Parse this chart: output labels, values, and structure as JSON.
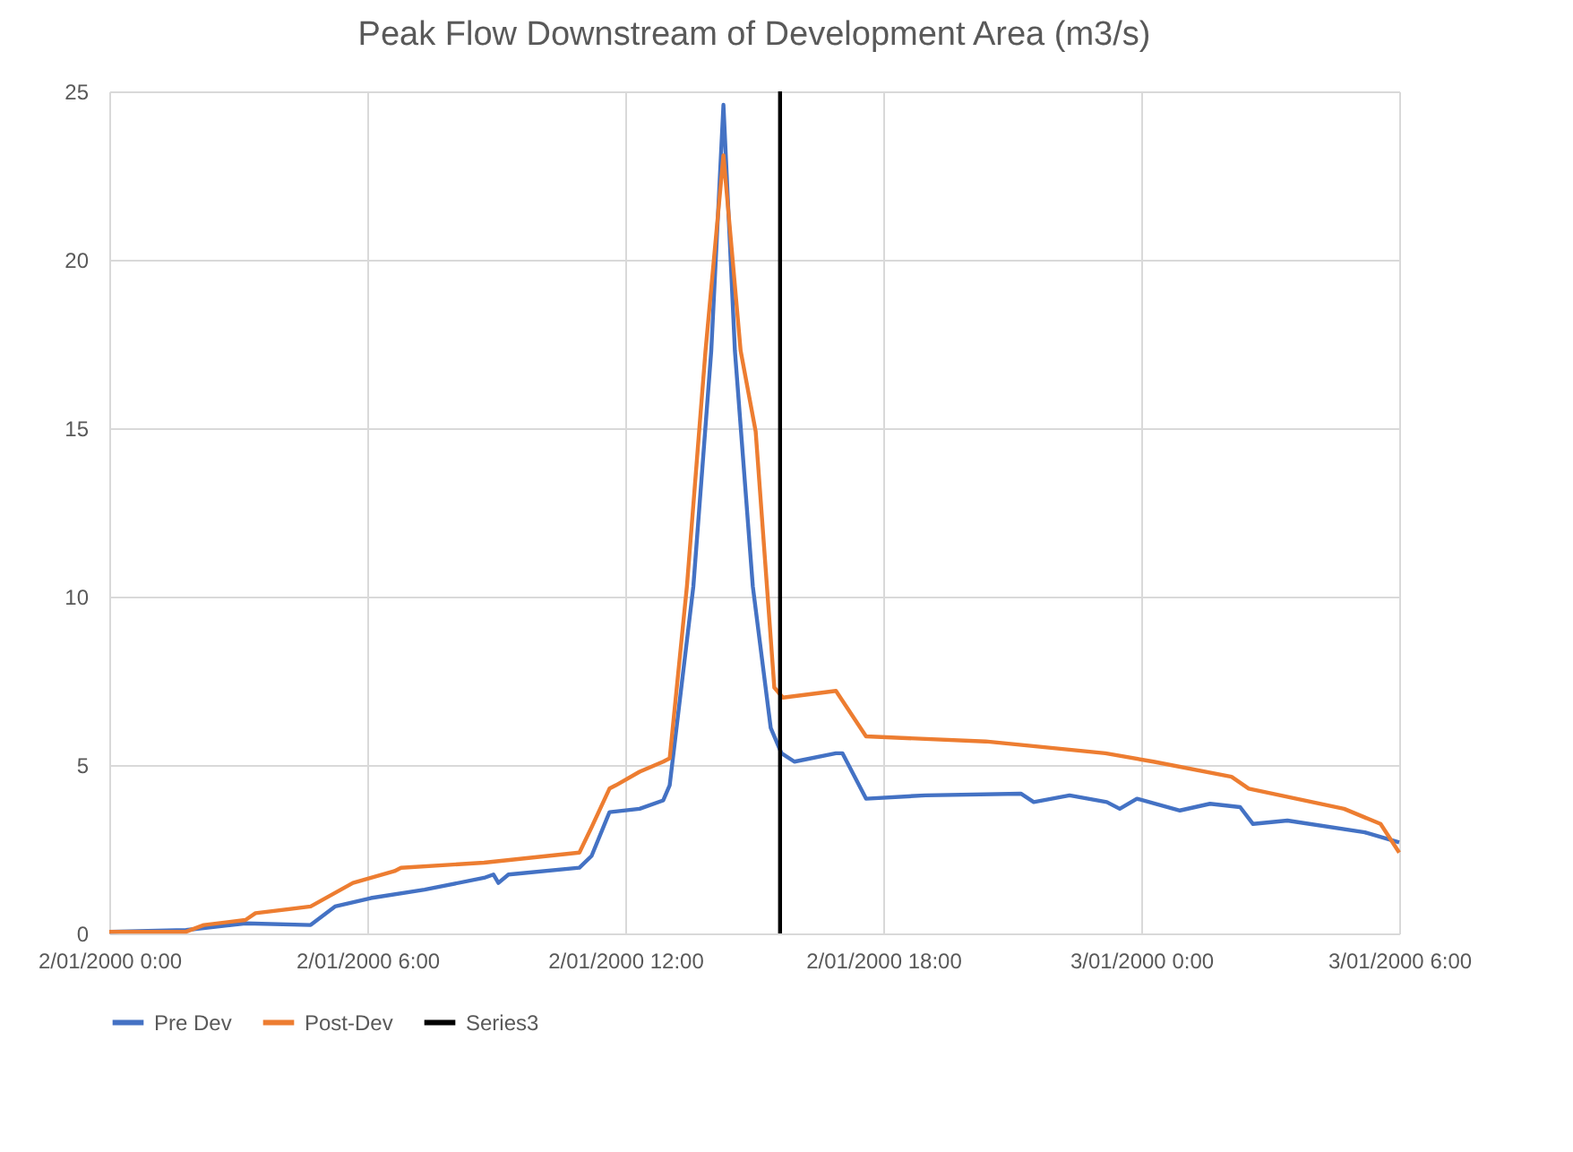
{
  "chart_data": {
    "type": "line",
    "title": "Peak Flow Downstream of Development Area (m3/s)",
    "xlim": [
      "2000-01-02T00:00",
      "2000-01-03T06:00"
    ],
    "xticks": [
      {
        "value": "2000-01-02T00:00",
        "label": "2/01/2000 0:00"
      },
      {
        "value": "2000-01-02T06:00",
        "label": "2/01/2000 6:00"
      },
      {
        "value": "2000-01-02T12:00",
        "label": "2/01/2000 12:00"
      },
      {
        "value": "2000-01-02T18:00",
        "label": "2/01/2000 18:00"
      },
      {
        "value": "2000-01-03T00:00",
        "label": "3/01/2000 0:00"
      },
      {
        "value": "2000-01-03T06:00",
        "label": "3/01/2000 6:00"
      }
    ],
    "ylim": [
      0,
      25
    ],
    "yticks": [
      0,
      5,
      10,
      15,
      20,
      25
    ],
    "grid": true,
    "legend": "bottom",
    "line_style": "solid",
    "marker": "none",
    "series": [
      {
        "name": "Pre Dev",
        "color": "#4472c4",
        "x": [
          "2000-01-02T00:00",
          "2000-01-02T01:47",
          "2000-01-02T03:10",
          "2000-01-02T04:41",
          "2000-01-02T05:15",
          "2000-01-02T06:05",
          "2000-01-02T07:20",
          "2000-01-02T08:43",
          "2000-01-02T08:56",
          "2000-01-02T09:03",
          "2000-01-02T09:17",
          "2000-01-02T10:56",
          "2000-01-02T11:13",
          "2000-01-02T11:38",
          "2000-01-02T12:20",
          "2000-01-02T12:53",
          "2000-01-02T13:02",
          "2000-01-02T13:35",
          "2000-01-02T14:00",
          "2000-01-02T14:17",
          "2000-01-02T14:33",
          "2000-01-02T14:58",
          "2000-01-02T15:23",
          "2000-01-02T15:38",
          "2000-01-02T15:56",
          "2000-01-02T16:54",
          "2000-01-02T17:03",
          "2000-01-02T17:36",
          "2000-01-02T18:59",
          "2000-01-02T21:12",
          "2000-01-02T21:30",
          "2000-01-02T22:20",
          "2000-01-02T23:12",
          "2000-01-02T23:30",
          "2000-01-02T23:54",
          "2000-01-03T00:54",
          "2000-01-03T01:36",
          "2000-01-03T02:18",
          "2000-01-03T02:36",
          "2000-01-03T03:24",
          "2000-01-03T05:12",
          "2000-01-03T06:00"
        ],
        "values": [
          0.05,
          0.1,
          0.3,
          0.25,
          0.8,
          1.05,
          1.3,
          1.65,
          1.75,
          1.5,
          1.75,
          1.95,
          2.3,
          3.6,
          3.7,
          3.95,
          4.4,
          10.3,
          17.3,
          24.6,
          17.3,
          10.3,
          6.1,
          5.35,
          5.1,
          5.35,
          5.35,
          4.0,
          4.1,
          4.15,
          3.9,
          4.1,
          3.9,
          3.7,
          4.0,
          3.65,
          3.85,
          3.75,
          3.25,
          3.35,
          3.0,
          2.7
        ]
      },
      {
        "name": "Post-Dev",
        "color": "#ed7d31",
        "x": [
          "2000-01-02T00:00",
          "2000-01-02T01:47",
          "2000-01-02T02:12",
          "2000-01-02T03:10",
          "2000-01-02T03:24",
          "2000-01-02T04:41",
          "2000-01-02T05:40",
          "2000-01-02T06:38",
          "2000-01-02T06:47",
          "2000-01-02T08:43",
          "2000-01-02T10:56",
          "2000-01-02T11:13",
          "2000-01-02T11:38",
          "2000-01-02T11:47",
          "2000-01-02T12:20",
          "2000-01-02T12:53",
          "2000-01-02T13:02",
          "2000-01-02T13:26",
          "2000-01-02T13:52",
          "2000-01-02T14:17",
          "2000-01-02T14:41",
          "2000-01-02T15:02",
          "2000-01-02T15:28",
          "2000-01-02T15:40",
          "2000-01-02T16:54",
          "2000-01-02T17:36",
          "2000-01-02T20:23",
          "2000-01-02T23:10",
          "2000-01-03T00:17",
          "2000-01-03T02:06",
          "2000-01-03T02:30",
          "2000-01-03T04:43",
          "2000-01-03T05:34",
          "2000-01-03T06:00"
        ],
        "values": [
          0.05,
          0.05,
          0.25,
          0.4,
          0.6,
          0.8,
          1.5,
          1.85,
          1.95,
          2.1,
          2.4,
          3.15,
          4.3,
          4.4,
          4.8,
          5.1,
          5.2,
          10.3,
          17.3,
          23.1,
          17.3,
          14.9,
          7.3,
          7.0,
          7.2,
          5.85,
          5.7,
          5.35,
          5.1,
          4.65,
          4.3,
          3.7,
          3.25,
          2.4
        ]
      },
      {
        "name": "Series3",
        "color": "#000000",
        "x": [
          "2000-01-02T15:36",
          "2000-01-02T15:36"
        ],
        "values": [
          0,
          25
        ]
      }
    ]
  }
}
